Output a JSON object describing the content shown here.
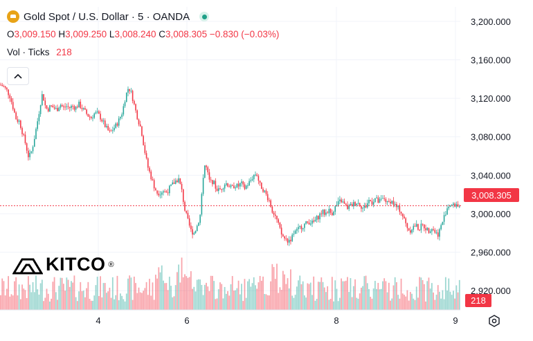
{
  "header": {
    "symbol_title": "Gold Spot / U.S. Dollar · 5 · OANDA",
    "ohlc": [
      {
        "key": "O",
        "value": "3,009.150"
      },
      {
        "key": "H",
        "value": "3,009.250"
      },
      {
        "key": "L",
        "value": "3,008.240"
      },
      {
        "key": "C",
        "value": "3,008.305"
      }
    ],
    "change": "−0.830 (−0.03%)",
    "volume_label": "Vol · Ticks",
    "volume_value": "218"
  },
  "price_axis": {
    "ticks": [
      "3,200.000",
      "3,160.000",
      "3,120.000",
      "3,080.000",
      "3,040.000",
      "3,000.000",
      "2,960.000",
      "2,920.000"
    ],
    "current_price_label": "3,008.305",
    "volume_badge": "218"
  },
  "time_axis": {
    "ticks": [
      "4",
      "6",
      "8",
      "9"
    ]
  },
  "logo": {
    "text": "KITCO",
    "mark": "®"
  },
  "colors": {
    "up": "#26a69a",
    "down": "#f23645",
    "grid": "#f0f3fa",
    "text": "#131722",
    "brand_gold": "#e8a317"
  },
  "chart_data": {
    "type": "candlestick",
    "symbol": "Gold Spot / U.S. Dollar",
    "interval": "5",
    "source": "OANDA",
    "y_range": [
      2900,
      3215
    ],
    "y_ticks": [
      3200,
      3160,
      3120,
      3080,
      3040,
      3000,
      2960,
      2920
    ],
    "x_ticks": [
      "4",
      "6",
      "8",
      "9"
    ],
    "last_price": 3008.305,
    "price_path": [
      [
        0,
        3134
      ],
      [
        2,
        3132
      ],
      [
        4,
        3128
      ],
      [
        6,
        3122
      ],
      [
        8,
        3110
      ],
      [
        10,
        3098
      ],
      [
        12,
        3096
      ],
      [
        14,
        3084
      ],
      [
        16,
        3072
      ],
      [
        18,
        3058
      ],
      [
        20,
        3066
      ],
      [
        22,
        3082
      ],
      [
        24,
        3100
      ],
      [
        26,
        3120
      ],
      [
        27,
        3126
      ],
      [
        28,
        3114
      ],
      [
        30,
        3108
      ],
      [
        32,
        3112
      ],
      [
        34,
        3110
      ],
      [
        36,
        3108
      ],
      [
        38,
        3114
      ],
      [
        40,
        3110
      ],
      [
        42,
        3112
      ],
      [
        44,
        3110
      ],
      [
        46,
        3112
      ],
      [
        48,
        3110
      ],
      [
        50,
        3114
      ],
      [
        52,
        3110
      ],
      [
        54,
        3106
      ],
      [
        56,
        3102
      ],
      [
        58,
        3100
      ],
      [
        60,
        3104
      ],
      [
        62,
        3104
      ],
      [
        64,
        3100
      ],
      [
        66,
        3094
      ],
      [
        68,
        3088
      ],
      [
        70,
        3084
      ],
      [
        72,
        3088
      ],
      [
        74,
        3092
      ],
      [
        76,
        3098
      ],
      [
        78,
        3106
      ],
      [
        80,
        3122
      ],
      [
        82,
        3132
      ],
      [
        84,
        3124
      ],
      [
        86,
        3110
      ],
      [
        88,
        3098
      ],
      [
        90,
        3088
      ],
      [
        92,
        3068
      ],
      [
        94,
        3050
      ],
      [
        96,
        3040
      ],
      [
        98,
        3030
      ],
      [
        100,
        3022
      ],
      [
        102,
        3022
      ],
      [
        104,
        3024
      ],
      [
        106,
        3022
      ],
      [
        108,
        3026
      ],
      [
        110,
        3030
      ],
      [
        112,
        3034
      ],
      [
        114,
        3036
      ],
      [
        116,
        3024
      ],
      [
        118,
        3004
      ],
      [
        120,
        2992
      ],
      [
        122,
        2982
      ],
      [
        124,
        2980
      ],
      [
        126,
        2988
      ],
      [
        128,
        3000
      ],
      [
        130,
        3044
      ],
      [
        131,
        3052
      ],
      [
        132,
        3046
      ],
      [
        134,
        3032
      ],
      [
        136,
        3034
      ],
      [
        138,
        3026
      ],
      [
        140,
        3024
      ],
      [
        142,
        3028
      ],
      [
        144,
        3032
      ],
      [
        146,
        3030
      ],
      [
        148,
        3026
      ],
      [
        150,
        3030
      ],
      [
        152,
        3028
      ],
      [
        154,
        3032
      ],
      [
        156,
        3026
      ],
      [
        158,
        3030
      ],
      [
        160,
        3034
      ],
      [
        162,
        3040
      ],
      [
        164,
        3042
      ],
      [
        166,
        3030
      ],
      [
        168,
        3026
      ],
      [
        170,
        3020
      ],
      [
        172,
        3014
      ],
      [
        174,
        3004
      ],
      [
        176,
        2998
      ],
      [
        178,
        2988
      ],
      [
        180,
        2978
      ],
      [
        182,
        2974
      ],
      [
        184,
        2972
      ],
      [
        186,
        2974
      ],
      [
        188,
        2980
      ],
      [
        190,
        2982
      ],
      [
        192,
        2986
      ],
      [
        194,
        2988
      ],
      [
        196,
        2990
      ],
      [
        198,
        2992
      ],
      [
        200,
        2990
      ],
      [
        202,
        2994
      ],
      [
        204,
        2998
      ],
      [
        206,
        3002
      ],
      [
        208,
        3000
      ],
      [
        210,
        3004
      ],
      [
        212,
        3000
      ],
      [
        214,
        3006
      ],
      [
        216,
        3010
      ],
      [
        218,
        3014
      ],
      [
        220,
        3010
      ],
      [
        222,
        3006
      ],
      [
        224,
        3008
      ],
      [
        226,
        3010
      ],
      [
        228,
        3012
      ],
      [
        230,
        3010
      ],
      [
        232,
        3006
      ],
      [
        234,
        3008
      ],
      [
        236,
        3014
      ],
      [
        238,
        3012
      ],
      [
        240,
        3016
      ],
      [
        242,
        3012
      ],
      [
        244,
        3014
      ],
      [
        246,
        3016
      ],
      [
        248,
        3010
      ],
      [
        250,
        3014
      ],
      [
        252,
        3010
      ],
      [
        254,
        3006
      ],
      [
        256,
        3004
      ],
      [
        258,
        2996
      ],
      [
        260,
        2988
      ],
      [
        262,
        2982
      ],
      [
        264,
        2986
      ],
      [
        266,
        2988
      ],
      [
        268,
        2984
      ],
      [
        270,
        2988
      ],
      [
        272,
        2986
      ],
      [
        274,
        2982
      ],
      [
        276,
        2986
      ],
      [
        278,
        2982
      ],
      [
        280,
        2978
      ],
      [
        282,
        2986
      ],
      [
        284,
        2996
      ],
      [
        286,
        3006
      ],
      [
        288,
        3010
      ],
      [
        290,
        3008
      ],
      [
        292,
        3010
      ],
      [
        294,
        3008
      ]
    ]
  }
}
